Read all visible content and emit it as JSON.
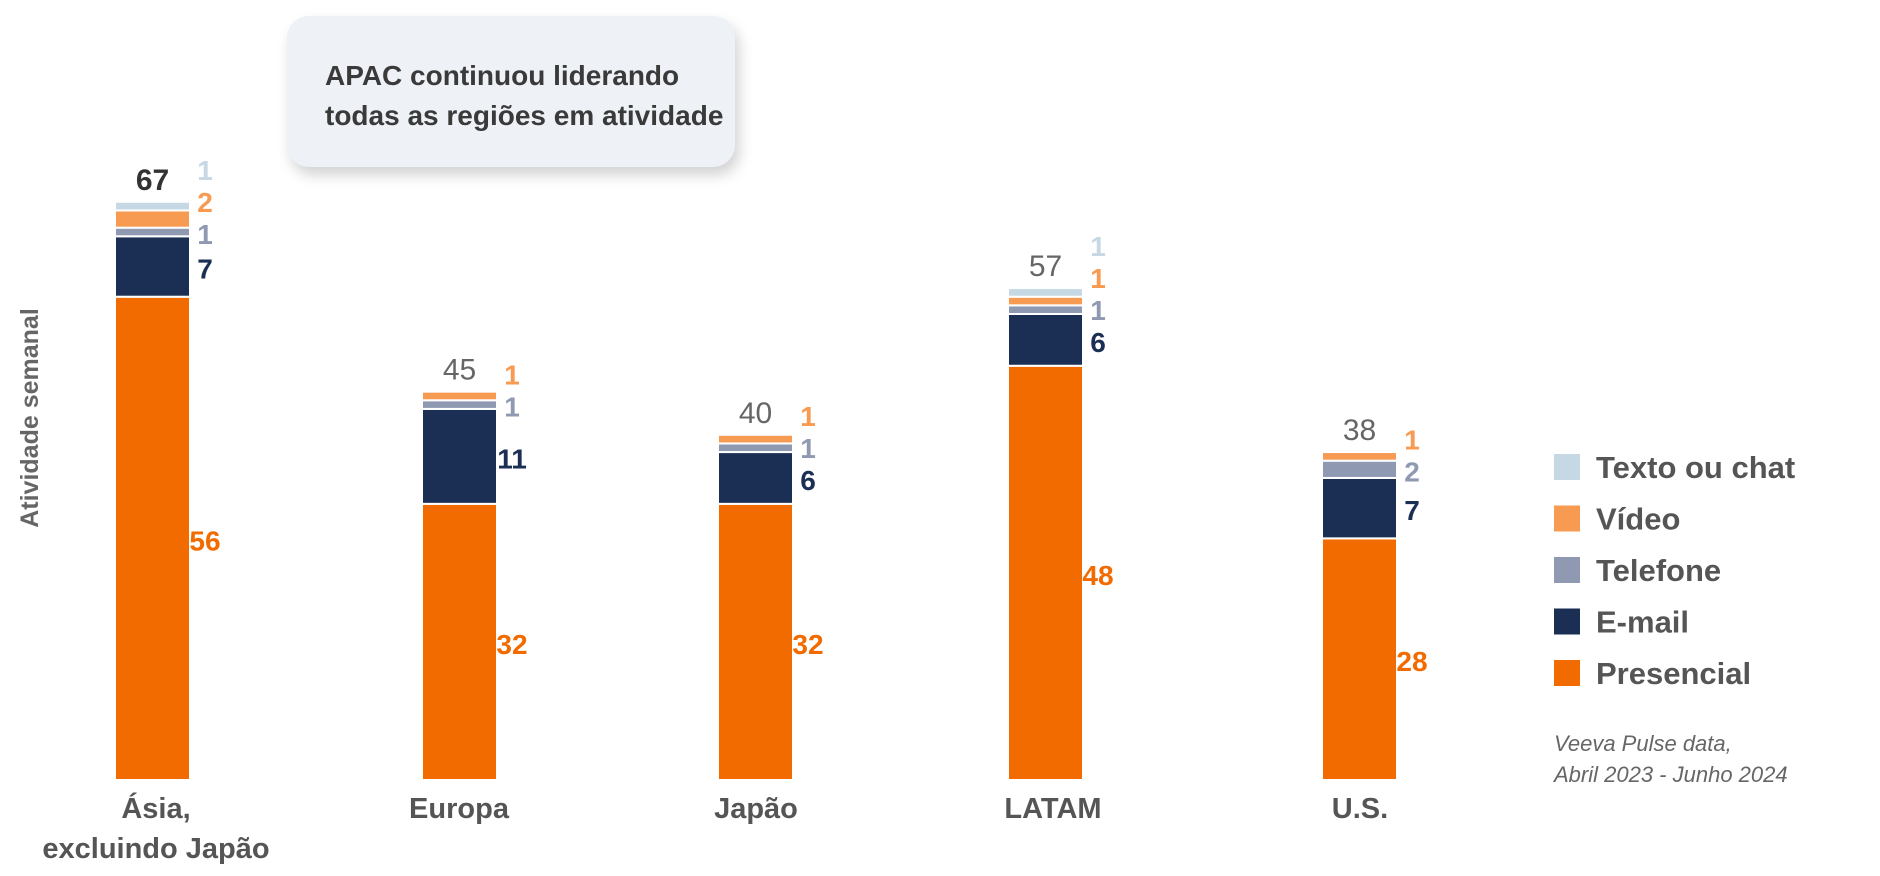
{
  "callout": {
    "line1": "APAC continuou liderando",
    "line2": "todas as regiões em atividade"
  },
  "source": {
    "line1": "Veeva Pulse data,",
    "line2": "Abril 2023 - Junho 2024"
  },
  "chart_data": {
    "type": "bar",
    "stacked": true,
    "title": "",
    "ylabel": "Atividade semanal",
    "xlabel": "",
    "ylim": [
      0,
      67
    ],
    "grid": false,
    "legend_position": "right",
    "categories": [
      [
        "Ásia,",
        "excluindo Japão"
      ],
      [
        "Europa"
      ],
      [
        "Japão"
      ],
      [
        "LATAM"
      ],
      [
        "U.S."
      ]
    ],
    "totals": [
      67,
      45,
      40,
      57,
      38
    ],
    "series": [
      {
        "name": "Presencial",
        "color": "#f26b00",
        "values": [
          56,
          32,
          32,
          48,
          28
        ],
        "labels": [
          "56",
          "32",
          "32",
          "48",
          "28"
        ]
      },
      {
        "name": "E-mail",
        "color": "#1b2f55",
        "values": [
          7,
          11,
          6,
          6,
          7
        ],
        "labels": [
          "7",
          "11",
          "6",
          "6",
          "7"
        ]
      },
      {
        "name": "Telefone",
        "color": "#8f9ab2",
        "values": [
          1,
          1,
          1,
          1,
          2
        ],
        "labels": [
          "1",
          "1",
          "1",
          "1",
          "2"
        ]
      },
      {
        "name": "Vídeo",
        "color": "#f79a52",
        "values": [
          2,
          1,
          1,
          1,
          1
        ],
        "labels": [
          "2",
          "1",
          "1",
          "1",
          "1"
        ]
      },
      {
        "name": "Texto ou chat",
        "color": "#c5d8e3",
        "values": [
          1,
          0,
          0,
          1,
          0
        ],
        "labels": [
          "1",
          "",
          "",
          "1",
          ""
        ]
      }
    ],
    "legend_order": [
      "Texto ou chat",
      "Vídeo",
      "Telefone",
      "E-mail",
      "Presencial"
    ]
  }
}
